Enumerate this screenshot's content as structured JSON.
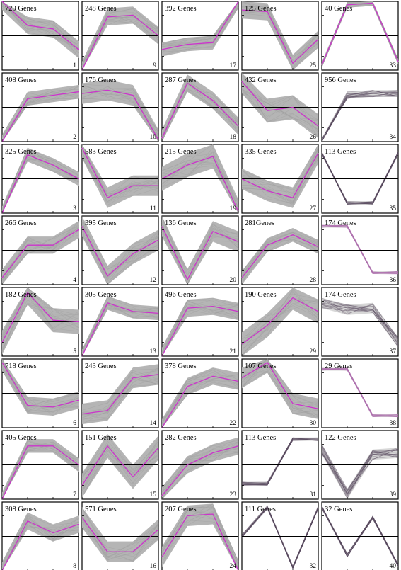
{
  "chart_data": {
    "type": "line",
    "description_style": "time-series gene expression clusters",
    "x": [
      1,
      2,
      3,
      4
    ],
    "ylim": [
      -1,
      1
    ],
    "grid": false,
    "colors": {
      "band": "#b5b5b5",
      "center_line": "#cc33cc",
      "frame": "#000000"
    },
    "panels": [
      {
        "cluster": "1",
        "genes": "729 Genes",
        "values": [
          1.0,
          0.3,
          0.2,
          -0.4
        ],
        "spread": 0.25,
        "style": "band"
      },
      {
        "cluster": "9",
        "genes": "248 Genes",
        "values": [
          -1.0,
          0.55,
          0.6,
          0.0
        ],
        "spread": 0.25,
        "style": "band"
      },
      {
        "cluster": "17",
        "genes": "392 Genes",
        "values": [
          -0.4,
          -0.25,
          -0.2,
          1.0
        ],
        "spread": 0.2,
        "style": "band"
      },
      {
        "cluster": "25",
        "genes": "125 Genes",
        "values": [
          0.75,
          0.7,
          -0.8,
          -0.1
        ],
        "spread": 0.25,
        "style": "band"
      },
      {
        "cluster": "33",
        "genes": "40 Genes",
        "values": [
          -0.85,
          0.9,
          0.95,
          -0.75
        ],
        "spread": 0.08,
        "style": "band"
      },
      {
        "cluster": "2",
        "genes": "408 Genes",
        "values": [
          -1.0,
          0.25,
          0.35,
          0.45
        ],
        "spread": 0.2,
        "style": "band"
      },
      {
        "cluster": "10",
        "genes": "176 Genes",
        "values": [
          0.4,
          0.5,
          0.35,
          -0.95
        ],
        "spread": 0.3,
        "style": "band"
      },
      {
        "cluster": "18",
        "genes": "287 Genes",
        "values": [
          -0.9,
          0.7,
          0.2,
          -0.55
        ],
        "spread": 0.25,
        "style": "band"
      },
      {
        "cluster": "26",
        "genes": "432 Genes",
        "values": [
          0.75,
          -0.1,
          0.0,
          -0.55
        ],
        "spread": 0.35,
        "style": "band"
      },
      {
        "cluster": "34",
        "genes": "956 Genes",
        "values": [
          -1.0,
          0.35,
          0.4,
          0.4
        ],
        "spread": 0.1,
        "style": "dark"
      },
      {
        "cluster": "3",
        "genes": "325 Genes",
        "values": [
          -1.0,
          0.7,
          0.4,
          0.0
        ],
        "spread": 0.2,
        "style": "band"
      },
      {
        "cluster": "11",
        "genes": "583 Genes",
        "values": [
          0.9,
          -0.55,
          -0.2,
          -0.2
        ],
        "spread": 0.3,
        "style": "band"
      },
      {
        "cluster": "19",
        "genes": "215 Genes",
        "values": [
          0.0,
          0.4,
          0.65,
          -0.95
        ],
        "spread": 0.35,
        "style": "band"
      },
      {
        "cluster": "27",
        "genes": "335 Genes",
        "values": [
          0.0,
          -0.35,
          -0.55,
          0.75
        ],
        "spread": 0.3,
        "style": "band"
      },
      {
        "cluster": "35",
        "genes": "113 Genes",
        "values": [
          0.75,
          -0.7,
          -0.7,
          0.75
        ],
        "spread": 0.05,
        "style": "dark"
      },
      {
        "cluster": "4",
        "genes": "266 Genes",
        "values": [
          -0.8,
          0.15,
          0.15,
          0.6
        ],
        "spread": 0.25,
        "style": "band"
      },
      {
        "cluster": "12",
        "genes": "395 Genes",
        "values": [
          0.7,
          -0.75,
          -0.1,
          0.3
        ],
        "spread": 0.3,
        "style": "band"
      },
      {
        "cluster": "20",
        "genes": "136 Genes",
        "values": [
          0.7,
          -0.85,
          0.55,
          0.25
        ],
        "spread": 0.3,
        "style": "band"
      },
      {
        "cluster": "28",
        "genes": "281Genes",
        "values": [
          -0.8,
          0.15,
          0.45,
          0.1
        ],
        "spread": 0.2,
        "style": "band"
      },
      {
        "cluster": "36",
        "genes": "174 Genes",
        "values": [
          0.7,
          0.7,
          -0.65,
          -0.65
        ],
        "spread": 0.04,
        "style": "pink"
      },
      {
        "cluster": "5",
        "genes": "182 Genes",
        "values": [
          -0.6,
          0.85,
          0.05,
          0.0
        ],
        "spread": 0.35,
        "style": "band"
      },
      {
        "cluster": "13",
        "genes": "305 Genes",
        "values": [
          -1.0,
          0.55,
          0.3,
          0.25
        ],
        "spread": 0.2,
        "style": "band"
      },
      {
        "cluster": "21",
        "genes": "496 Genes",
        "values": [
          -1.0,
          0.4,
          0.45,
          0.3
        ],
        "spread": 0.25,
        "style": "band"
      },
      {
        "cluster": "29",
        "genes": "190 Genes",
        "values": [
          -0.65,
          -0.1,
          0.7,
          0.3
        ],
        "spread": 0.35,
        "style": "band"
      },
      {
        "cluster": "37",
        "genes": "174 Genes",
        "values": [
          0.55,
          0.35,
          0.4,
          -0.6
        ],
        "spread": 0.15,
        "style": "dark"
      },
      {
        "cluster": "6",
        "genes": "718 Genes",
        "values": [
          0.9,
          -0.35,
          -0.4,
          -0.2
        ],
        "spread": 0.25,
        "style": "band"
      },
      {
        "cluster": "14",
        "genes": "243 Genes",
        "values": [
          -0.6,
          -0.5,
          0.45,
          0.55
        ],
        "spread": 0.3,
        "style": "band"
      },
      {
        "cluster": "22",
        "genes": "378 Genes",
        "values": [
          -1.0,
          0.2,
          0.5,
          0.35
        ],
        "spread": 0.25,
        "style": "band"
      },
      {
        "cluster": "30",
        "genes": "107 Genes",
        "values": [
          0.45,
          0.9,
          -0.3,
          -0.45
        ],
        "spread": 0.3,
        "style": "band"
      },
      {
        "cluster": "38",
        "genes": "29 Genes",
        "values": [
          0.7,
          0.7,
          -0.65,
          -0.65
        ],
        "spread": 0.04,
        "style": "pink"
      },
      {
        "cluster": "7",
        "genes": "405 Genes",
        "values": [
          -1.0,
          0.55,
          0.55,
          0.0
        ],
        "spread": 0.2,
        "style": "band"
      },
      {
        "cluster": "15",
        "genes": "151 Genes",
        "values": [
          -0.6,
          0.55,
          -0.35,
          0.5
        ],
        "spread": 0.35,
        "style": "band"
      },
      {
        "cluster": "23",
        "genes": "282 Genes",
        "values": [
          -0.9,
          0.0,
          0.35,
          0.55
        ],
        "spread": 0.25,
        "style": "band"
      },
      {
        "cluster": "31",
        "genes": "113 Genes",
        "values": [
          -0.55,
          -0.55,
          0.75,
          0.75
        ],
        "spread": 0.05,
        "style": "dark"
      },
      {
        "cluster": "39",
        "genes": "122 Genes",
        "values": [
          0.45,
          -0.85,
          0.3,
          0.35
        ],
        "spread": 0.15,
        "style": "dark"
      },
      {
        "cluster": "8",
        "genes": "308 Genes",
        "values": [
          -1.0,
          0.45,
          0.1,
          0.35
        ],
        "spread": 0.25,
        "style": "band"
      },
      {
        "cluster": "16",
        "genes": "571 Genes",
        "values": [
          0.55,
          -0.45,
          -0.45,
          0.2
        ],
        "spread": 0.3,
        "style": "band"
      },
      {
        "cluster": "24",
        "genes": "207 Genes",
        "values": [
          -0.6,
          0.6,
          0.65,
          -1.0
        ],
        "spread": 0.3,
        "style": "band"
      },
      {
        "cluster": "32",
        "genes": "111 Genes",
        "values": [
          0.0,
          0.85,
          -0.9,
          0.85
        ],
        "spread": 0.05,
        "style": "dark"
      },
      {
        "cluster": "40",
        "genes": "32 Genes",
        "values": [
          0.85,
          -0.55,
          0.55,
          -0.85
        ],
        "spread": 0.05,
        "style": "dark"
      }
    ]
  }
}
